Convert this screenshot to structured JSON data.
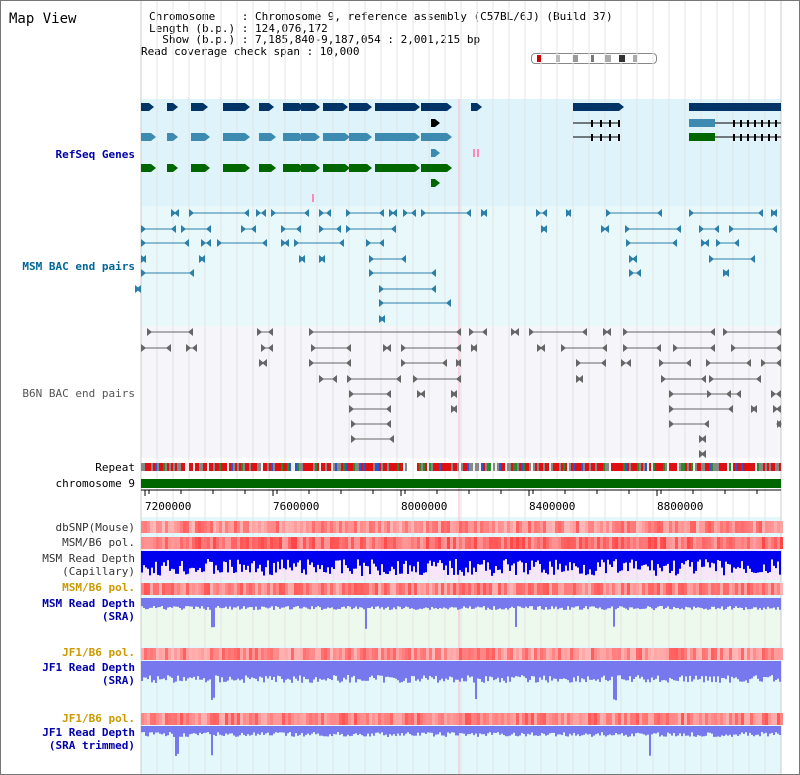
{
  "view_title": "Map View",
  "info": {
    "chromosome_line": "Chromosome    : Chromosome 9, reference assembly (C57BL/6J) (Build 37)",
    "length_line": "Length (b.p.) : 124,076,172",
    "show_line": "  Show (b.p.) : 7,185,840-9,187,054 : 2,001,215 bp",
    "coverage_line": "Read coverage check span : 10,000"
  },
  "tracks": {
    "refseq": {
      "label": "RefSeq Genes",
      "color": "#0000aa"
    },
    "msm_bac": {
      "label": "MSM BAC end pairs",
      "color": "#006699"
    },
    "b6n_bac": {
      "label": "B6N BAC end pairs",
      "color": "#555555"
    },
    "repeat": {
      "label": "Repeat"
    },
    "chromosome": {
      "label": "chromosome 9"
    },
    "dbsnp": {
      "label": "dbSNP(Mouse)"
    },
    "msm_b6_pol_1": {
      "label": "MSM/B6 pol."
    },
    "msm_read_cap": {
      "label_1": "MSM Read Depth",
      "label_2": "(Capillary)"
    },
    "msm_b6_pol_2": {
      "label": "MSM/B6 pol.",
      "color": "#cc9900"
    },
    "msm_read_sra": {
      "label_1": "MSM Read Depth",
      "label_2": "(SRA)",
      "color": "#0000aa"
    },
    "jf1_b6_pol_1": {
      "label": "JF1/B6 pol.",
      "color": "#cc9900"
    },
    "jf1_read_sra": {
      "label_1": "JF1 Read Depth",
      "label_2": "(SRA)",
      "color": "#0000aa"
    },
    "jf1_b6_pol_2": {
      "label": "JF1/B6 pol.",
      "color": "#cc9900"
    },
    "jf1_read_trim": {
      "label_1": "JF1 Read Depth",
      "label_2": "(SRA trimmed)",
      "color": "#0000aa"
    }
  },
  "axis": {
    "ticks": [
      "7200000",
      "7600000",
      "8000000",
      "8400000",
      "8800000"
    ]
  },
  "colors": {
    "refseq_bg": "#dff3fb",
    "msm_bg": "#e8f8fb",
    "b6n_bg": "#f5f5fa",
    "gene_navy": "#003366",
    "gene_blue": "#3d8bb0",
    "gene_green": "#006600",
    "chrom_green": "#006600",
    "depth_blue": "#0000ee",
    "depth_light": "#7777ee"
  }
}
